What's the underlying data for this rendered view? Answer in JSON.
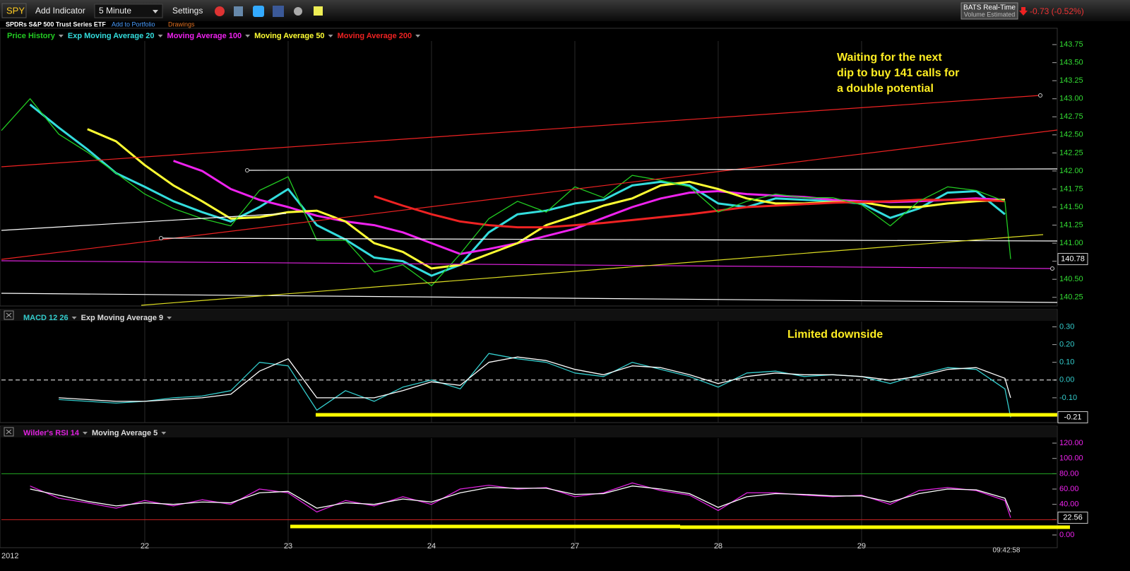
{
  "toolbar": {
    "symbol": "SPY",
    "buttons": [
      "Add Indicator",
      "5 Minute",
      "Settings"
    ],
    "feed": "BATS Real-Time",
    "volume": "Volume Estimated",
    "change": "-0.73 (-0.52%)"
  },
  "header": {
    "name": "SPDRs S&P 500 Trust Series ETF",
    "add_to_portfolio": "Add to Portfolio",
    "drawings": "Drawings"
  },
  "annotations": [
    "Waiting for the next",
    "dip to buy 141 calls for",
    "a double potential",
    "Limited downside"
  ],
  "year": "2012",
  "timestamp": "09:42:58",
  "chart_data": [
    {
      "type": "line",
      "last_label": "140.78",
      "ylim": [
        140.13,
        143.8
      ],
      "xlim": [
        0,
        7.36
      ],
      "x": [
        0,
        0.2,
        0.4,
        0.6,
        0.8,
        1.0,
        1.2,
        1.4,
        1.6,
        1.8,
        2.0,
        2.2,
        2.4,
        2.6,
        2.8,
        3.0,
        3.2,
        3.4,
        3.6,
        3.8,
        4.0,
        4.2,
        4.4,
        4.6,
        4.8,
        5.0,
        5.2,
        5.4,
        5.6,
        5.8,
        6.0,
        6.2,
        6.4,
        6.6,
        6.8,
        7.0,
        7.04
      ],
      "yticks": [
        {
          "value": 143.75,
          "label": "143.75"
        },
        {
          "value": 143.5,
          "label": "143.50"
        },
        {
          "value": 143.25,
          "label": "143.25"
        },
        {
          "value": 143,
          "label": "143.00"
        },
        {
          "value": 142.75,
          "label": "142.75"
        },
        {
          "value": 142.5,
          "label": "142.50"
        },
        {
          "value": 142.25,
          "label": "142.25"
        },
        {
          "value": 142,
          "label": "142.00"
        },
        {
          "value": 141.75,
          "label": "141.75"
        },
        {
          "value": 141.5,
          "label": "141.50"
        },
        {
          "value": 141.25,
          "label": "141.25"
        },
        {
          "value": 141,
          "label": "141.00"
        },
        {
          "value": 140.75,
          "label": "140.75"
        },
        {
          "value": 140.5,
          "label": "140.50"
        },
        {
          "value": 140.25,
          "label": "140.25"
        }
      ],
      "tick_color": "#33dd33",
      "series": [
        {
          "name": "Price History",
          "color": "#22cc22",
          "values": [
            142.56,
            143.0,
            142.51,
            142.26,
            141.97,
            141.68,
            141.48,
            141.34,
            141.24,
            141.73,
            141.92,
            141.04,
            141.04,
            140.6,
            140.7,
            140.41,
            140.85,
            141.34,
            141.58,
            141.43,
            141.78,
            141.63,
            141.94,
            141.87,
            141.78,
            141.43,
            141.58,
            141.68,
            141.63,
            141.63,
            141.53,
            141.24,
            141.58,
            141.78,
            141.73,
            141.58,
            140.78
          ]
        },
        {
          "name": "Exp Moving Average 20",
          "color": "#33dddd",
          "values": [
            null,
            142.92,
            142.6,
            142.3,
            141.97,
            141.78,
            141.58,
            141.43,
            141.3,
            141.5,
            141.75,
            141.25,
            141.05,
            140.8,
            140.75,
            140.55,
            140.7,
            141.15,
            141.4,
            141.45,
            141.55,
            141.6,
            141.8,
            141.85,
            141.8,
            141.55,
            141.5,
            141.62,
            141.6,
            141.58,
            141.55,
            141.35,
            141.48,
            141.7,
            141.72,
            141.4,
            null
          ]
        },
        {
          "name": "Moving Average 100",
          "color": "#ee22ee",
          "values": [
            null,
            null,
            null,
            null,
            null,
            null,
            142.14,
            142.0,
            141.75,
            141.6,
            141.5,
            141.38,
            141.3,
            141.25,
            141.15,
            141.0,
            140.85,
            140.92,
            141.0,
            141.1,
            141.2,
            141.35,
            141.5,
            141.62,
            141.7,
            141.72,
            141.68,
            141.66,
            141.64,
            141.6,
            141.58,
            141.57,
            141.58,
            141.6,
            141.62,
            141.6,
            null
          ]
        },
        {
          "name": "Moving Average 50",
          "color": "#ffff33",
          "values": [
            null,
            null,
            null,
            142.58,
            142.41,
            142.08,
            141.8,
            141.58,
            141.34,
            141.36,
            141.43,
            141.45,
            141.3,
            141.0,
            140.88,
            140.65,
            140.7,
            140.85,
            141.0,
            141.25,
            141.38,
            141.52,
            141.62,
            141.8,
            141.85,
            141.75,
            141.62,
            141.55,
            141.55,
            141.57,
            141.57,
            141.5,
            141.5,
            141.55,
            141.58,
            141.6,
            null
          ]
        },
        {
          "name": "Moving Average 200",
          "color": "#ee2222",
          "values": [
            null,
            null,
            null,
            null,
            null,
            null,
            null,
            null,
            null,
            null,
            null,
            null,
            null,
            141.65,
            141.52,
            141.4,
            141.3,
            141.25,
            141.22,
            141.22,
            141.25,
            141.28,
            141.32,
            141.36,
            141.4,
            141.45,
            141.5,
            141.52,
            141.54,
            141.56,
            141.57,
            141.58,
            141.6,
            141.6,
            141.6,
            141.58,
            null
          ]
        }
      ]
    },
    {
      "type": "line",
      "last_label": "-0.21",
      "ylim": [
        -0.24,
        0.33
      ],
      "xlim": [
        0,
        7.36
      ],
      "x": [
        0.4,
        0.6,
        0.8,
        1.0,
        1.2,
        1.4,
        1.6,
        1.8,
        2.0,
        2.2,
        2.4,
        2.6,
        2.8,
        3.0,
        3.2,
        3.4,
        3.6,
        3.8,
        4.0,
        4.2,
        4.4,
        4.6,
        4.8,
        5.0,
        5.2,
        5.4,
        5.6,
        5.8,
        6.0,
        6.2,
        6.4,
        6.6,
        6.8,
        7.0,
        7.04
      ],
      "yticks": [
        {
          "value": 0.3,
          "label": "0.30"
        },
        {
          "value": 0.2,
          "label": "0.20"
        },
        {
          "value": 0.1,
          "label": "0.10"
        },
        {
          "value": 0,
          "label": "0.00"
        },
        {
          "value": -0.1,
          "label": "-0.10"
        }
      ],
      "tick_color": "#33cccc",
      "hlines": [
        {
          "value": 0,
          "color": "#ffffff",
          "dashed": true
        }
      ],
      "series": [
        {
          "name": "MACD 12 26",
          "color": "#33cccc",
          "values": [
            -0.11,
            -0.12,
            -0.13,
            -0.12,
            -0.1,
            -0.09,
            -0.06,
            0.1,
            0.08,
            -0.17,
            -0.06,
            -0.12,
            -0.04,
            0.0,
            -0.05,
            0.15,
            0.12,
            0.1,
            0.04,
            0.02,
            0.1,
            0.06,
            0.02,
            -0.04,
            0.04,
            0.05,
            0.02,
            0.03,
            0.02,
            -0.02,
            0.03,
            0.07,
            0.06,
            -0.05,
            -0.21
          ]
        },
        {
          "name": "Exp Moving Average 9",
          "color": "#ffffff",
          "values": [
            -0.1,
            -0.11,
            -0.12,
            -0.12,
            -0.11,
            -0.1,
            -0.08,
            0.05,
            0.12,
            -0.1,
            -0.1,
            -0.1,
            -0.06,
            -0.01,
            -0.03,
            0.1,
            0.13,
            0.11,
            0.06,
            0.03,
            0.08,
            0.07,
            0.03,
            -0.02,
            0.02,
            0.04,
            0.03,
            0.03,
            0.02,
            0.0,
            0.02,
            0.06,
            0.07,
            0.01,
            -0.1
          ]
        }
      ]
    },
    {
      "type": "line",
      "last_label": "22.56",
      "ylim": [
        -16.6,
        126.5
      ],
      "xlim": [
        0,
        7.36
      ],
      "x": [
        0.2,
        0.4,
        0.6,
        0.8,
        1.0,
        1.2,
        1.4,
        1.6,
        1.8,
        2.0,
        2.2,
        2.4,
        2.6,
        2.8,
        3.0,
        3.2,
        3.4,
        3.6,
        3.8,
        4.0,
        4.2,
        4.4,
        4.6,
        4.8,
        5.0,
        5.2,
        5.4,
        5.6,
        5.8,
        6.0,
        6.2,
        6.4,
        6.6,
        6.8,
        7.0,
        7.04
      ],
      "xticks": [
        {
          "value": 1,
          "label": "22"
        },
        {
          "value": 2,
          "label": "23"
        },
        {
          "value": 3,
          "label": "24"
        },
        {
          "value": 4,
          "label": "27"
        },
        {
          "value": 5,
          "label": "28"
        },
        {
          "value": 6,
          "label": "29"
        }
      ],
      "yticks": [
        {
          "value": 120,
          "label": "120.00"
        },
        {
          "value": 100,
          "label": "100.00"
        },
        {
          "value": 80,
          "label": "80.00"
        },
        {
          "value": 60,
          "label": "60.00"
        },
        {
          "value": 40,
          "label": "40.00"
        },
        {
          "value": 20,
          "label": "20.00"
        },
        {
          "value": 0,
          "label": "0.00"
        }
      ],
      "tick_color": "#ee22ee",
      "hlines": [
        {
          "value": 80,
          "color": "#22aa22",
          "dashed": false
        },
        {
          "value": 20,
          "color": "#cc2222",
          "dashed": false
        }
      ],
      "series": [
        {
          "name": "Wilder's RSI 14",
          "color": "#dd22dd",
          "values": [
            64,
            48,
            42,
            35,
            45,
            38,
            46,
            40,
            60,
            55,
            30,
            45,
            38,
            50,
            40,
            60,
            65,
            60,
            62,
            50,
            55,
            68,
            58,
            52,
            32,
            55,
            55,
            52,
            50,
            52,
            40,
            58,
            62,
            58,
            45,
            22.56
          ]
        },
        {
          "name": "Moving Average 5",
          "color": "#ffffff",
          "values": [
            60,
            52,
            44,
            38,
            42,
            40,
            43,
            42,
            55,
            57,
            35,
            42,
            40,
            47,
            43,
            55,
            62,
            61,
            61,
            53,
            54,
            64,
            60,
            54,
            36,
            50,
            54,
            53,
            51,
            51,
            43,
            54,
            60,
            59,
            48,
            30
          ]
        }
      ]
    }
  ]
}
